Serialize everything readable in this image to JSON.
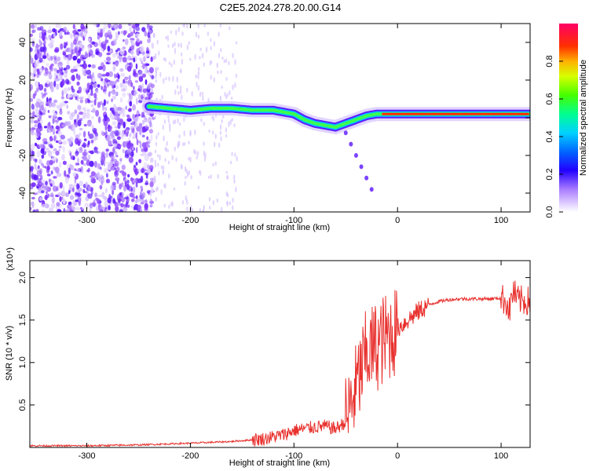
{
  "title": "C2E5.2024.278.20.00.G14",
  "colors": {
    "signal": "#e8312e",
    "scatter": "#7b2cff",
    "frame": "#000000"
  },
  "chart_data": [
    {
      "type": "heatmap",
      "xlabel": "Height of straight line (km)",
      "ylabel": "Frequency (Hz)",
      "xlim": [
        -355,
        128
      ],
      "ylim": [
        -50,
        50
      ],
      "x_ticks": [
        -300,
        -200,
        -100,
        0,
        100
      ],
      "y_ticks": [
        -40,
        -20,
        0,
        20,
        40
      ],
      "colorbar": {
        "label": "Normalized spectral amplitude",
        "range": [
          0,
          1
        ],
        "ticks": [
          0.0,
          0.2,
          0.4,
          0.6,
          0.8
        ],
        "tick_labels": [
          "0.0",
          "0.2",
          "0.4",
          "0.6",
          "0.8"
        ]
      },
      "ridge": {
        "x": [
          -240,
          -220,
          -200,
          -180,
          -160,
          -140,
          -120,
          -100,
          -90,
          -80,
          -70,
          -60,
          -50,
          -40,
          -30,
          -20,
          -10,
          0,
          20,
          40,
          60,
          80,
          100,
          120,
          128
        ],
        "y": [
          6,
          5,
          4,
          5,
          5,
          4,
          4,
          2,
          -1,
          -3,
          -4,
          -5,
          -3,
          -1,
          1,
          2,
          2,
          2,
          2,
          2,
          2,
          2,
          2,
          2,
          2
        ]
      },
      "tail": {
        "x": [
          -50,
          -45,
          -40,
          -35,
          -30,
          -25
        ],
        "y": [
          -8,
          -14,
          -20,
          -26,
          -32,
          -38
        ]
      }
    },
    {
      "type": "line",
      "xlabel": "Height of straight line (km)",
      "ylabel": "SNR (10 * v/v)",
      "y_multiplier": "(x10⁴)",
      "xlim": [
        -355,
        128
      ],
      "ylim": [
        0,
        2.2
      ],
      "x_ticks": [
        -300,
        -200,
        -100,
        0,
        100
      ],
      "y_ticks": [
        0.5,
        1.0,
        1.5,
        2.0
      ],
      "y_tick_labels": [
        "0.5",
        "1.0",
        "1.5",
        "2.0"
      ],
      "series": [
        {
          "x": [
            -355,
            -300,
            -250,
            -200,
            -160,
            -130,
            -110,
            -100,
            -90,
            -80,
            -70,
            -60,
            -50,
            -45,
            -40,
            -35,
            -30,
            -25,
            -20,
            -15,
            -10,
            -5,
            0,
            10,
            20,
            30,
            40,
            50,
            60,
            70,
            80,
            90,
            100,
            105,
            108,
            110,
            112,
            115,
            120,
            128
          ],
          "y": [
            0.02,
            0.02,
            0.03,
            0.05,
            0.07,
            0.1,
            0.15,
            0.2,
            0.22,
            0.24,
            0.25,
            0.22,
            0.3,
            0.5,
            0.7,
            0.9,
            1.1,
            1.15,
            1.2,
            1.25,
            1.3,
            1.35,
            1.4,
            1.5,
            1.6,
            1.68,
            1.72,
            1.74,
            1.75,
            1.75,
            1.75,
            1.75,
            1.76,
            1.72,
            1.6,
            1.75,
            1.85,
            1.74,
            1.73,
            1.72
          ]
        }
      ]
    }
  ]
}
